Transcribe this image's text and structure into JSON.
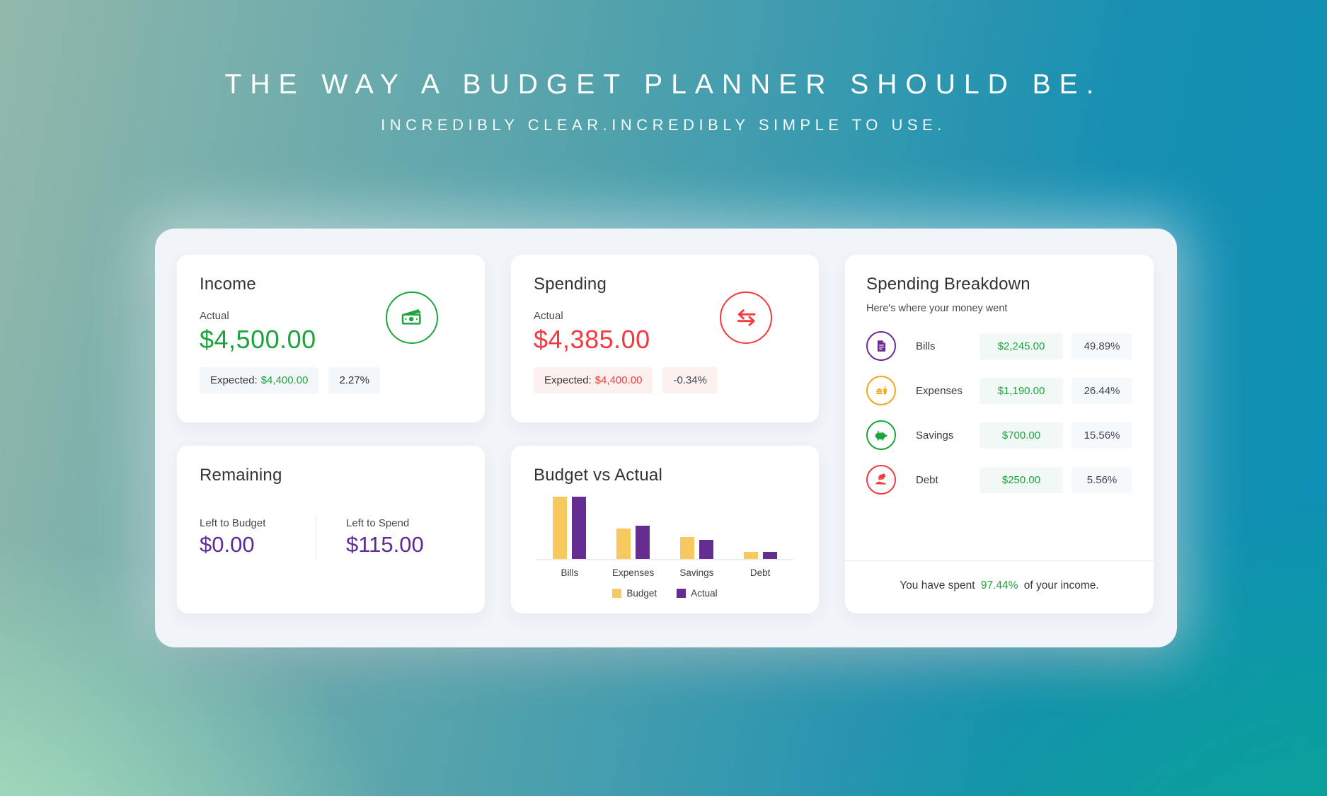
{
  "header": {
    "title": "THE WAY A BUDGET PLANNER SHOULD BE.",
    "subtitle": "INCREDIBLY CLEAR.INCREDIBLY SIMPLE TO USE."
  },
  "cards": {
    "income": {
      "title": "Income",
      "actual_label": "Actual",
      "actual_value": "$4,500.00",
      "expected_label": "Expected:",
      "expected_value": "$4,400.00",
      "delta": "2.27%",
      "icon": "cash-icon",
      "accent": "#1ca53c"
    },
    "spending": {
      "title": "Spending",
      "actual_label": "Actual",
      "actual_value": "$4,385.00",
      "expected_label": "Expected:",
      "expected_value": "$4,400.00",
      "delta": "-0.34%",
      "icon": "transfer-arrows-icon",
      "accent": "#f5393e"
    },
    "remaining": {
      "title": "Remaining",
      "left_to_budget_label": "Left to Budget",
      "left_to_budget_value": "$0.00",
      "left_to_spend_label": "Left to Spend",
      "left_to_spend_value": "$115.00",
      "accent": "#5e2b96"
    },
    "breakdown": {
      "title": "Spending Breakdown",
      "subtitle": "Here's where your money went",
      "rows": [
        {
          "label": "Bills",
          "amount": "$2,245.00",
          "percent": "49.89%",
          "icon": "bills-document-icon",
          "color": "#6a2c91"
        },
        {
          "label": "Expenses",
          "amount": "$1,190.00",
          "percent": "26.44%",
          "icon": "fast-food-icon",
          "color": "#f2a71b"
        },
        {
          "label": "Savings",
          "amount": "$700.00",
          "percent": "15.56%",
          "icon": "piggy-bank-icon",
          "color": "#1ca53c"
        },
        {
          "label": "Debt",
          "amount": "$250.00",
          "percent": "5.56%",
          "icon": "hand-card-icon",
          "color": "#f5393e"
        }
      ],
      "footer": {
        "prefix": "You have spent",
        "percent": "97.44%",
        "suffix": "of your income."
      }
    }
  },
  "chart_data": {
    "type": "bar",
    "title": "Budget vs Actual",
    "categories": [
      "Bills",
      "Expenses",
      "Savings",
      "Debt"
    ],
    "series": [
      {
        "name": "Budget",
        "color": "#f8c95e",
        "values": [
          2250,
          1100,
          800,
          250
        ]
      },
      {
        "name": "Actual",
        "color": "#662d91",
        "values": [
          2245,
          1190,
          700,
          250
        ]
      }
    ],
    "ylim": [
      0,
      2400
    ],
    "grid": false,
    "legend_position": "bottom"
  },
  "colors": {
    "income_green": "#1ca53c",
    "spending_red": "#f5393e",
    "remaining_purple": "#5e2b96",
    "budget_yellow": "#f8c95e",
    "actual_purple": "#662d91",
    "panel_bg": "#f1f4f9"
  }
}
